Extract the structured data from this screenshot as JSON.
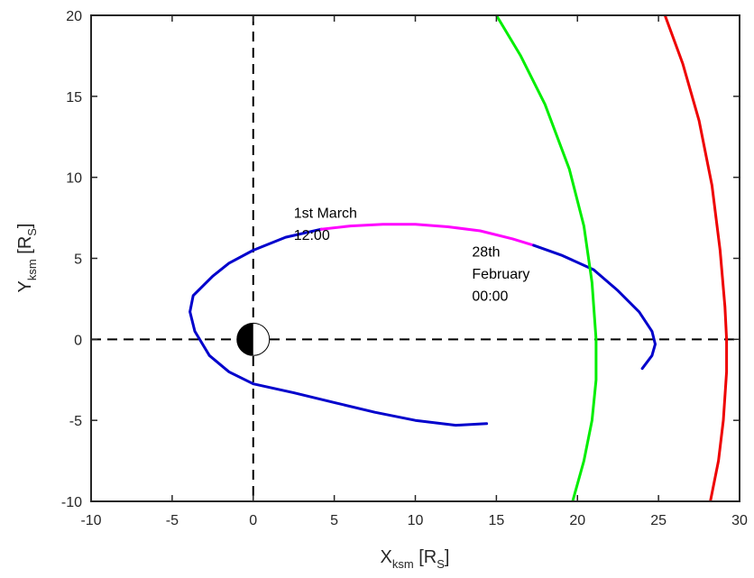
{
  "chart_data": {
    "type": "line",
    "title": "",
    "xlabel": {
      "main": "X",
      "sub": "ksm",
      "unit_open": " [R",
      "unit_sub": "S",
      "unit_close": "]"
    },
    "ylabel": {
      "main": "Y",
      "sub": "ksm",
      "unit_open": " [R",
      "unit_sub": "S",
      "unit_close": "]"
    },
    "xlim": [
      -10,
      30
    ],
    "ylim": [
      -10,
      20
    ],
    "xticks": [
      -10,
      -5,
      0,
      5,
      10,
      15,
      20,
      25,
      30
    ],
    "yticks": [
      -10,
      -5,
      0,
      5,
      10,
      15,
      20
    ],
    "xtick_labels": [
      "-10",
      "-5",
      "0",
      "5",
      "10",
      "15",
      "20",
      "25",
      "30"
    ],
    "ytick_labels": [
      "-10",
      "-5",
      "0",
      "5",
      "10",
      "15",
      "20"
    ],
    "grid": false,
    "reference_lines": [
      {
        "orientation": "vertical",
        "value": 0,
        "style": "dashed",
        "color": "#000000"
      },
      {
        "orientation": "horizontal",
        "value": 0,
        "style": "dashed",
        "color": "#000000"
      }
    ],
    "planet": {
      "x": 0,
      "y": 0,
      "radius": 1,
      "day_side": "+x",
      "night_side": "-x"
    },
    "series": [
      {
        "color": "#0000cc",
        "points": [
          [
            14.4,
            -5.2
          ],
          [
            12.5,
            -5.3
          ],
          [
            10,
            -5.0
          ],
          [
            7.5,
            -4.5
          ],
          [
            5,
            -3.9
          ],
          [
            2.5,
            -3.3
          ],
          [
            0,
            -2.75
          ],
          [
            -1.5,
            -2.0
          ],
          [
            -2.7,
            -1.0
          ],
          [
            -3.6,
            0.5
          ],
          [
            -3.9,
            1.7
          ],
          [
            -3.7,
            2.7
          ],
          [
            -2.5,
            3.9
          ],
          [
            -1.5,
            4.7
          ],
          [
            0,
            5.5
          ],
          [
            2,
            6.3
          ],
          [
            4.2,
            6.8
          ]
        ]
      },
      {
        "color": "#ff00ff",
        "points": [
          [
            4.2,
            6.8
          ],
          [
            6,
            7.0
          ],
          [
            8,
            7.1
          ],
          [
            10,
            7.1
          ],
          [
            12,
            6.95
          ],
          [
            14,
            6.7
          ],
          [
            16,
            6.2
          ],
          [
            17.3,
            5.8
          ]
        ]
      },
      {
        "color": "#0000cc",
        "points": [
          [
            17.3,
            5.8
          ],
          [
            19,
            5.2
          ],
          [
            21,
            4.3
          ],
          [
            22.5,
            3.0
          ],
          [
            23.8,
            1.7
          ],
          [
            24.6,
            0.5
          ],
          [
            24.8,
            -0.3
          ],
          [
            24.6,
            -1.0
          ],
          [
            24,
            -1.8
          ]
        ]
      },
      {
        "color": "#00ee00",
        "points": [
          [
            15,
            20
          ],
          [
            16.5,
            17.5
          ],
          [
            18,
            14.5
          ],
          [
            19.5,
            10.5
          ],
          [
            20.4,
            7
          ],
          [
            20.9,
            3.5
          ],
          [
            21.15,
            0
          ],
          [
            21.15,
            -2.5
          ],
          [
            20.9,
            -5
          ],
          [
            20.4,
            -7.5
          ],
          [
            19.7,
            -10
          ]
        ]
      },
      {
        "color": "#ee0000",
        "points": [
          [
            25.4,
            20
          ],
          [
            26.5,
            17
          ],
          [
            27.5,
            13.5
          ],
          [
            28.3,
            9.5
          ],
          [
            28.8,
            5.5
          ],
          [
            29.1,
            2
          ],
          [
            29.2,
            0
          ],
          [
            29.2,
            -2
          ],
          [
            29,
            -5
          ],
          [
            28.7,
            -7.5
          ],
          [
            28.2,
            -10
          ]
        ]
      }
    ],
    "annotations": [
      {
        "lines": [
          "1st March",
          "12:00"
        ],
        "x": 2.5,
        "y": 7.5
      },
      {
        "lines": [
          "28th",
          "February",
          "00:00"
        ],
        "x": 13.5,
        "y": 5.1
      }
    ]
  }
}
